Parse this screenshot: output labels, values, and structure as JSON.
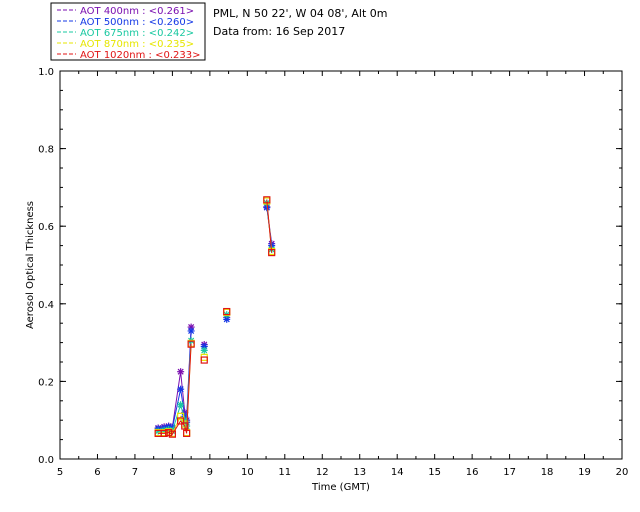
{
  "chart_data": {
    "type": "line",
    "site_title": "PML, N 50 22', W 04 08', Alt 0m",
    "date_line": "Data from: 16 Sep 2017",
    "xlabel": "Time (GMT)",
    "ylabel": "Aerosol Optical Thickness",
    "xlim": [
      5,
      20
    ],
    "ylim": [
      0.0,
      1.0
    ],
    "xticks": [
      "5",
      "6",
      "7",
      "8",
      "9",
      "10",
      "11",
      "12",
      "13",
      "14",
      "15",
      "16",
      "17",
      "18",
      "19",
      "20"
    ],
    "yticks": [
      "0.0",
      "0.2",
      "0.4",
      "0.6",
      "0.8",
      "1.0"
    ],
    "legend_position": "top-left",
    "series": [
      {
        "name": "AOT  400nm : <0.261>",
        "color": "#7a0fb0",
        "marker": "star",
        "x": [
          7.62,
          7.78,
          7.9,
          8.0,
          8.22,
          8.33,
          8.38,
          8.5,
          8.85,
          9.45,
          10.52,
          10.65
        ],
        "y": [
          0.08,
          0.083,
          0.085,
          0.082,
          0.225,
          0.12,
          0.1,
          0.34,
          0.295,
          0.365,
          0.65,
          0.555
        ]
      },
      {
        "name": "AOT  500nm : <0.260>",
        "color": "#1438e6",
        "marker": "star",
        "x": [
          7.62,
          7.78,
          7.9,
          8.0,
          8.22,
          8.33,
          8.38,
          8.5,
          8.85,
          9.45,
          10.52,
          10.65
        ],
        "y": [
          0.078,
          0.08,
          0.083,
          0.08,
          0.18,
          0.11,
          0.095,
          0.33,
          0.29,
          0.36,
          0.648,
          0.55
        ]
      },
      {
        "name": "AOT  675nm : <0.242>",
        "color": "#18c8a0",
        "marker": "star",
        "x": [
          7.62,
          7.78,
          7.9,
          8.0,
          8.22,
          8.33,
          8.38,
          8.5,
          8.85,
          9.45,
          10.52,
          10.65
        ],
        "y": [
          0.072,
          0.074,
          0.076,
          0.072,
          0.14,
          0.1,
          0.085,
          0.305,
          0.28,
          0.372,
          0.66,
          0.54
        ]
      },
      {
        "name": "AOT  870nm : <0.235>",
        "color": "#e6e600",
        "marker": "square",
        "x": [
          7.62,
          7.78,
          7.9,
          8.0,
          8.22,
          8.33,
          8.38,
          8.5,
          8.85,
          9.45,
          10.52,
          10.65
        ],
        "y": [
          0.068,
          0.068,
          0.07,
          0.066,
          0.11,
          0.09,
          0.068,
          0.298,
          0.262,
          0.378,
          0.665,
          0.535
        ]
      },
      {
        "name": "AOT 1020nm : <0.233>",
        "color": "#e01414",
        "marker": "square",
        "x": [
          7.62,
          7.78,
          7.9,
          8.0,
          8.22,
          8.33,
          8.38,
          8.5,
          8.85,
          9.45,
          10.52,
          10.65
        ],
        "y": [
          0.066,
          0.066,
          0.068,
          0.064,
          0.098,
          0.085,
          0.066,
          0.296,
          0.255,
          0.38,
          0.668,
          0.532
        ]
      }
    ]
  }
}
